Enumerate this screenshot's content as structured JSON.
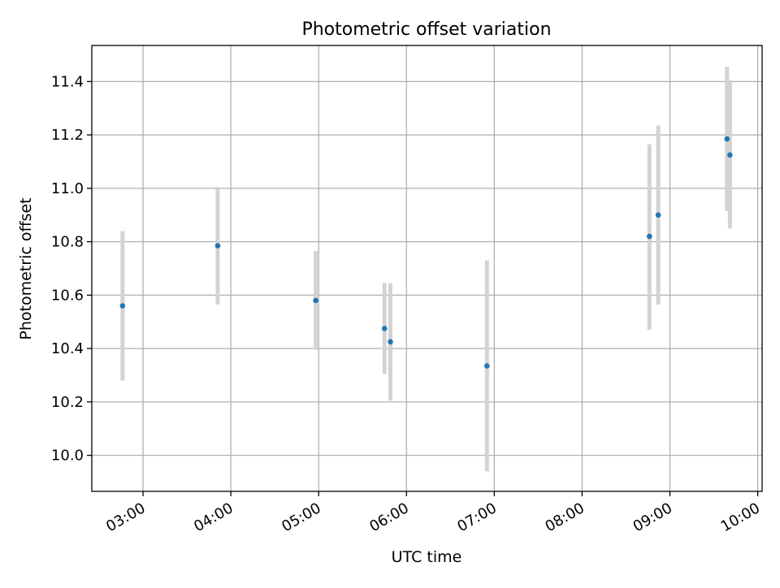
{
  "chart_data": {
    "type": "scatter",
    "title": "Photometric offset variation",
    "xlabel": "UTC time",
    "ylabel": "Photometric offset",
    "x_ticks": [
      "03:00",
      "04:00",
      "05:00",
      "06:00",
      "07:00",
      "08:00",
      "09:00",
      "10:00"
    ],
    "y_ticks": [
      "10.0",
      "10.2",
      "10.4",
      "10.6",
      "10.8",
      "11.0",
      "11.2",
      "11.4"
    ],
    "xlim": [
      "02:25",
      "10:03"
    ],
    "ylim": [
      9.865,
      11.535
    ],
    "grid": true,
    "series": [
      {
        "x": [
          "02:46",
          "03:51",
          "04:58",
          "05:45",
          "05:49",
          "06:55",
          "08:46",
          "08:52",
          "09:39",
          "09:41"
        ],
        "y": [
          10.56,
          10.785,
          10.58,
          10.475,
          10.425,
          10.335,
          10.82,
          10.9,
          11.185,
          11.125
        ],
        "error_low": [
          10.28,
          10.565,
          10.395,
          10.305,
          10.205,
          9.94,
          10.47,
          10.565,
          10.915,
          10.85
        ],
        "error_high": [
          10.84,
          11.005,
          10.765,
          10.645,
          10.645,
          10.73,
          11.165,
          11.235,
          11.455,
          11.405
        ]
      }
    ],
    "colors": {
      "marker": "#1f77b4",
      "errorbar": "#d3d3d3",
      "grid": "#b0b0b0",
      "axes": "#000000"
    }
  }
}
